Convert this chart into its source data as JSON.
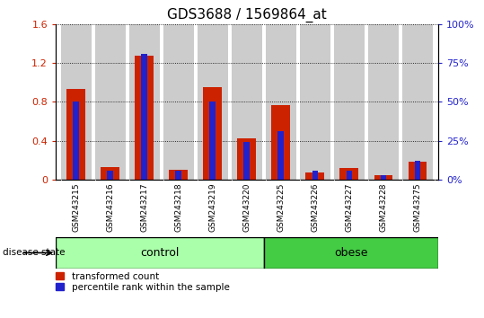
{
  "title": "GDS3688 / 1569864_at",
  "samples": [
    "GSM243215",
    "GSM243216",
    "GSM243217",
    "GSM243218",
    "GSM243219",
    "GSM243220",
    "GSM243225",
    "GSM243226",
    "GSM243227",
    "GSM243228",
    "GSM243275"
  ],
  "red_values": [
    0.93,
    0.13,
    1.27,
    0.1,
    0.95,
    0.42,
    0.77,
    0.07,
    0.12,
    0.05,
    0.18
  ],
  "blue_values_pct": [
    50,
    6,
    81,
    6,
    50,
    24,
    31,
    6,
    6,
    3,
    12
  ],
  "ylim_left": [
    0,
    1.6
  ],
  "ylim_right": [
    0,
    100
  ],
  "left_ticks": [
    0,
    0.4,
    0.8,
    1.2,
    1.6
  ],
  "right_ticks": [
    0,
    25,
    50,
    75,
    100
  ],
  "left_tick_labels": [
    "0",
    "0.4",
    "0.8",
    "1.2",
    "1.6"
  ],
  "right_tick_labels": [
    "0%",
    "25%",
    "50%",
    "75%",
    "100%"
  ],
  "n_control": 6,
  "n_obese": 5,
  "control_color": "#aaffaa",
  "obese_color": "#44cc44",
  "red_bar_color": "#cc2200",
  "blue_bar_color": "#2222cc",
  "bar_bg_color": "#cccccc",
  "legend_red": "transformed count",
  "legend_blue": "percentile rank within the sample",
  "disease_label": "disease state",
  "control_label": "control",
  "obese_label": "obese",
  "title_fontsize": 11,
  "tick_fontsize": 8,
  "bar_width": 0.55,
  "blue_bar_width": 0.18
}
